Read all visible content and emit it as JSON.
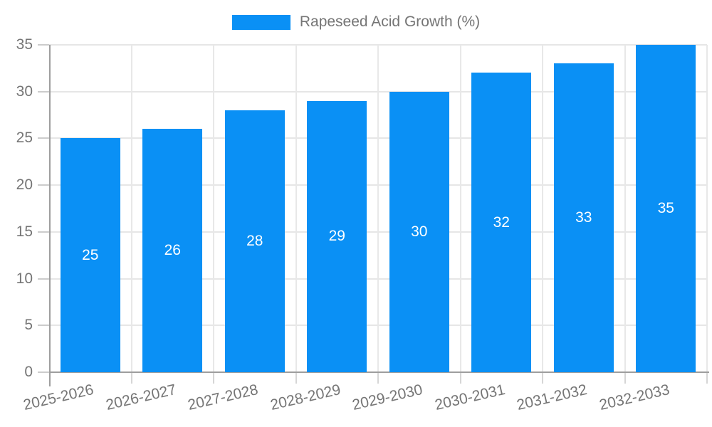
{
  "legend": {
    "label": "Rapeseed Acid Growth (%)"
  },
  "chart_data": {
    "type": "bar",
    "title": "Rapeseed Acid Growth (%)",
    "series_name": "Rapeseed Acid Growth (%)",
    "categories": [
      "2025-2026",
      "2026-2027",
      "2027-2028",
      "2028-2029",
      "2029-2030",
      "2030-2031",
      "2031-2032",
      "2032-2033"
    ],
    "values": [
      25,
      26,
      28,
      29,
      30,
      32,
      33,
      35
    ],
    "bar_value_labels": [
      "25",
      "26",
      "28",
      "29",
      "30",
      "32",
      "33",
      "35"
    ],
    "xlabel": "",
    "ylabel": "",
    "ylim": [
      0,
      35
    ],
    "y_ticks": [
      0,
      5,
      10,
      15,
      20,
      25,
      30,
      35
    ],
    "grid": "on",
    "legend_position": "top-center",
    "x_label_rotation_deg": -13,
    "colors": {
      "bar": "#0a90f5",
      "bar_label": "#ffffff",
      "axis_text": "#757575",
      "grid_line": "#e6e6e6",
      "axis_line": "#9e9e9e"
    }
  }
}
